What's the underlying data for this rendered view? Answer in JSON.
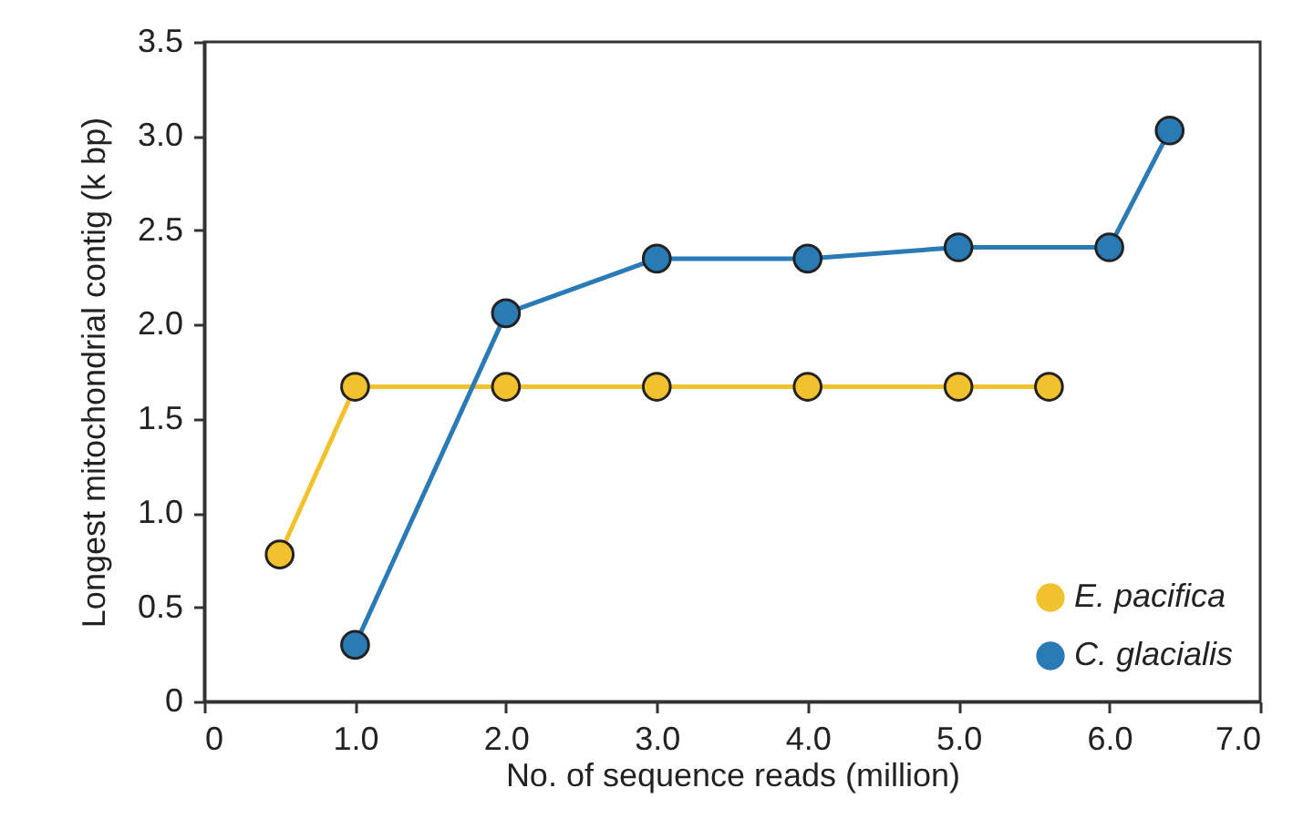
{
  "chart_data": {
    "type": "line",
    "xlabel": "No. of sequence reads (million)",
    "ylabel": "Longest mitochondrial contig (k bp)",
    "xlim": [
      0,
      7.0
    ],
    "xticks": [
      0,
      {
        "value": 1,
        "label": "1.0"
      },
      {
        "value": 2,
        "label": "2.0"
      },
      {
        "value": 3,
        "label": "3.0"
      },
      {
        "value": 4,
        "label": "4.0"
      },
      {
        "value": 5,
        "label": "5.0"
      },
      {
        "value": 6,
        "label": "6.0"
      },
      {
        "value": 7,
        "label": "7.0"
      }
    ],
    "ylim": [
      0,
      3.5
    ],
    "yticks": [
      0,
      0.5,
      {
        "value": 1,
        "label": "1.0"
      },
      1.5,
      {
        "value": 2,
        "label": "2.0"
      },
      2.5,
      {
        "value": 3,
        "label": "3.0"
      },
      3.5
    ],
    "series": [
      {
        "name": "E. pacifica",
        "color": "#f2c12e",
        "x": [
          0.5,
          1,
          2,
          3,
          4,
          5,
          5.6
        ],
        "values": [
          0.78,
          1.67,
          1.67,
          1.67,
          1.67,
          1.67,
          1.67
        ]
      },
      {
        "name": "C. glacialis",
        "color": "#2a7ab5",
        "x": [
          1,
          2,
          3,
          4,
          5,
          6,
          6.4
        ],
        "values": [
          0.3,
          2.06,
          2.35,
          2.35,
          2.41,
          2.41,
          3.03
        ]
      }
    ],
    "legend": "bottom right",
    "grid": false,
    "marker": "circle",
    "line_style": "solid"
  }
}
